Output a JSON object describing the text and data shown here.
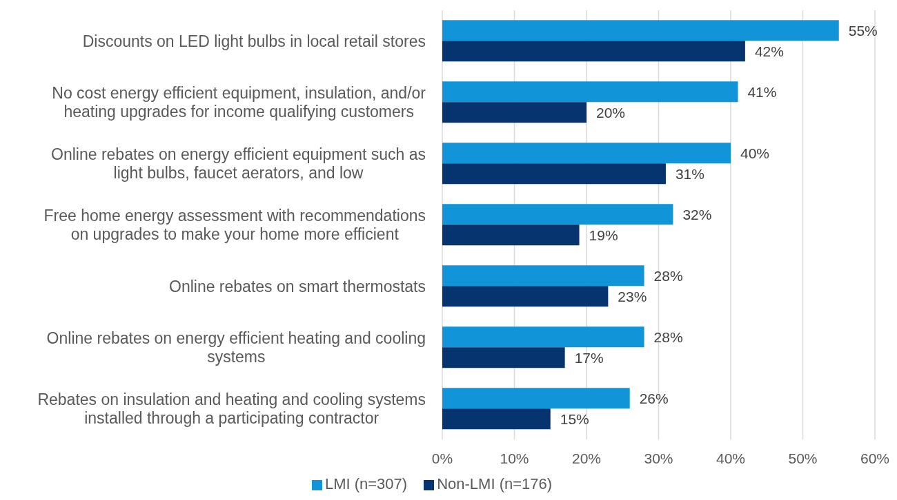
{
  "chart_data": {
    "type": "bar",
    "orientation": "horizontal",
    "categories": [
      "Discounts on LED light bulbs in local retail stores",
      "No cost energy efficient equipment, insulation, and/or heating upgrades for income qualifying customers",
      "Online rebates on energy efficient equipment such as light bulbs, faucet aerators, and low",
      "Free home energy assessment with recommendations on upgrades to make your home more efficient",
      "Online rebates on smart thermostats",
      "Online rebates on energy efficient heating and cooling systems",
      "Rebates on insulation and heating and cooling systems installed through a participating contractor"
    ],
    "series": [
      {
        "name": "LMI (n=307)",
        "color": "#1195d8",
        "values": [
          55,
          41,
          40,
          32,
          28,
          28,
          26
        ],
        "value_labels": [
          "55%",
          "41%",
          "40%",
          "32%",
          "28%",
          "28%",
          "26%"
        ]
      },
      {
        "name": "Non-LMI (n=176)",
        "color": "#06346f",
        "values": [
          42,
          20,
          31,
          19,
          23,
          17,
          15
        ],
        "value_labels": [
          "42%",
          "20%",
          "31%",
          "19%",
          "23%",
          "17%",
          "15%"
        ]
      }
    ],
    "xlim": [
      0,
      60
    ],
    "xticks": [
      {
        "value": 0,
        "label": "0%"
      },
      {
        "value": 10,
        "label": "10%"
      },
      {
        "value": 20,
        "label": "20%"
      },
      {
        "value": 30,
        "label": "30%"
      },
      {
        "value": 40,
        "label": "40%"
      },
      {
        "value": 50,
        "label": "50%"
      },
      {
        "value": 60,
        "label": "60%"
      }
    ],
    "grid": "x",
    "legend": "bottom"
  }
}
